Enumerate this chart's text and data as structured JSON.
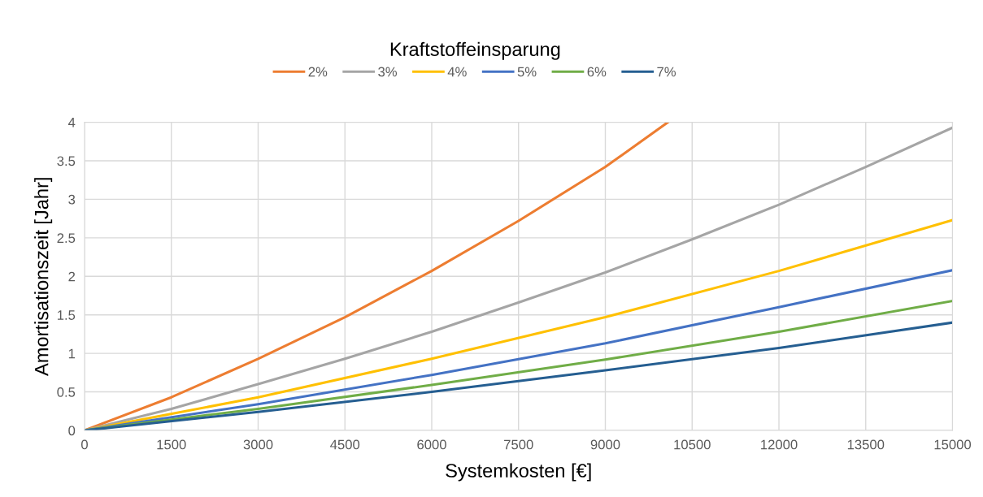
{
  "chart_data": {
    "type": "line",
    "xlabel": "Systemkosten [€]",
    "ylabel": "Amortisationszeit [Jahr]",
    "legend_title": "Kraftstoffeinsparung",
    "series": [
      {
        "name": "2%",
        "color": "#ed7d31",
        "x": [
          0,
          1500,
          3000,
          4500,
          6000,
          7500,
          9000,
          10080
        ],
        "values": [
          0,
          0.43,
          0.93,
          1.47,
          2.07,
          2.72,
          3.42,
          4
        ]
      },
      {
        "name": "3%",
        "color": "#a5a5a5",
        "x": [
          0,
          1500,
          3000,
          4500,
          6000,
          7500,
          9000,
          10500,
          12000,
          13500,
          15000
        ],
        "values": [
          0,
          0.28,
          0.6,
          0.93,
          1.28,
          1.66,
          2.05,
          2.48,
          2.93,
          3.42,
          3.93
        ]
      },
      {
        "name": "4%",
        "color": "#ffc000",
        "x": [
          0,
          3000,
          6000,
          9000,
          12000,
          15000
        ],
        "values": [
          0,
          0.43,
          0.93,
          1.47,
          2.07,
          2.73
        ]
      },
      {
        "name": "5%",
        "color": "#4472c4",
        "x": [
          0,
          3000,
          6000,
          9000,
          12000,
          15000
        ],
        "values": [
          0,
          0.34,
          0.72,
          1.13,
          1.6,
          2.08
        ]
      },
      {
        "name": "6%",
        "color": "#70ad47",
        "x": [
          0,
          3000,
          6000,
          9000,
          12000,
          15000
        ],
        "values": [
          0,
          0.28,
          0.59,
          0.92,
          1.28,
          1.68
        ]
      },
      {
        "name": "7%",
        "color": "#255e91",
        "x": [
          0,
          3000,
          6000,
          9000,
          12000,
          15000
        ],
        "values": [
          0,
          0.24,
          0.5,
          0.78,
          1.07,
          1.4
        ]
      }
    ],
    "xlim": [
      0,
      15000
    ],
    "xticks": [
      0,
      1500,
      3000,
      4500,
      6000,
      7500,
      9000,
      10500,
      12000,
      13500,
      15000
    ],
    "ylim": [
      0,
      4
    ],
    "yticks": [
      0,
      {
        "value": 0.5,
        "label": "0.5"
      },
      1,
      {
        "value": 1.5,
        "label": "1.5"
      },
      2,
      {
        "value": 2.5,
        "label": "2.5"
      },
      3,
      {
        "value": 3.5,
        "label": "3.5"
      },
      4
    ],
    "grid": true,
    "legend": "top",
    "marker": "none",
    "line_style": "solid"
  }
}
